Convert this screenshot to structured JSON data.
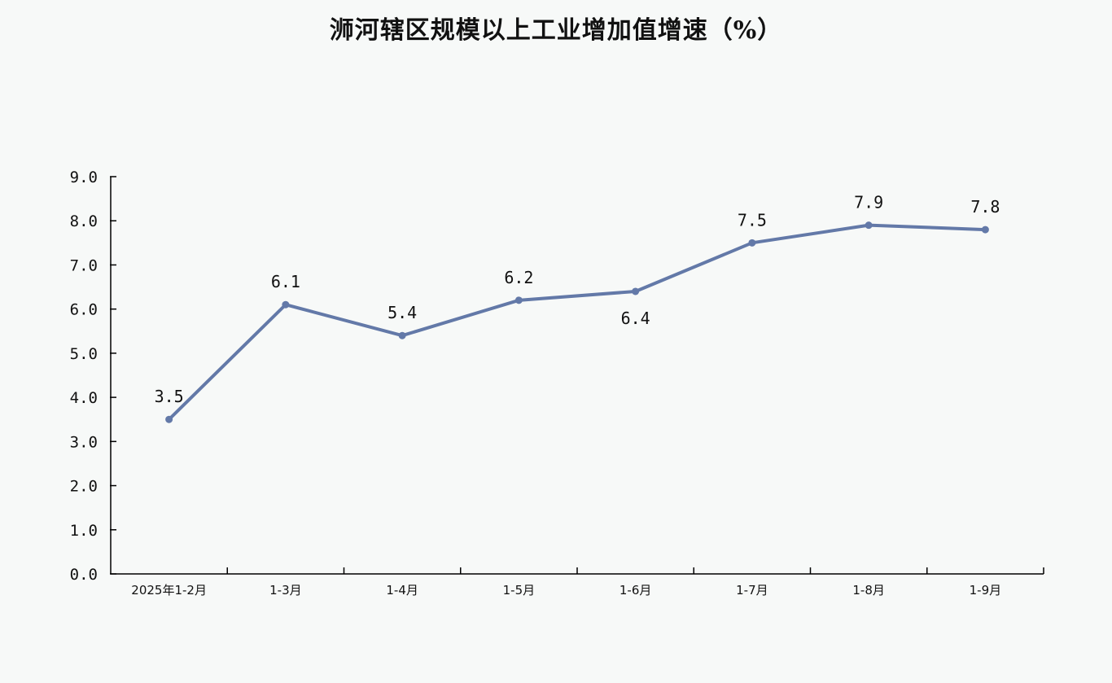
{
  "chart_data": {
    "type": "line",
    "title": "浉河辖区规模以上工业增加值增速（%）",
    "categories": [
      "2025年1-2月",
      "1-3月",
      "1-4月",
      "1-5月",
      "1-6月",
      "1-7月",
      "1-8月",
      "1-9月"
    ],
    "values": [
      3.5,
      6.1,
      5.4,
      6.2,
      6.4,
      7.5,
      7.9,
      7.8
    ],
    "value_labels": [
      "3.5",
      "6.1",
      "5.4",
      "6.2",
      "6.4",
      "7.5",
      "7.9",
      "7.8"
    ],
    "y_tick_labels": [
      "0.0",
      "1.0",
      "2.0",
      "3.0",
      "4.0",
      "5.0",
      "6.0",
      "7.0",
      "8.0",
      "9.0"
    ],
    "ylim": [
      0,
      9
    ],
    "xlabel": "",
    "ylabel": "",
    "grid": false,
    "legend": "none",
    "line_color": "#6379a8"
  }
}
